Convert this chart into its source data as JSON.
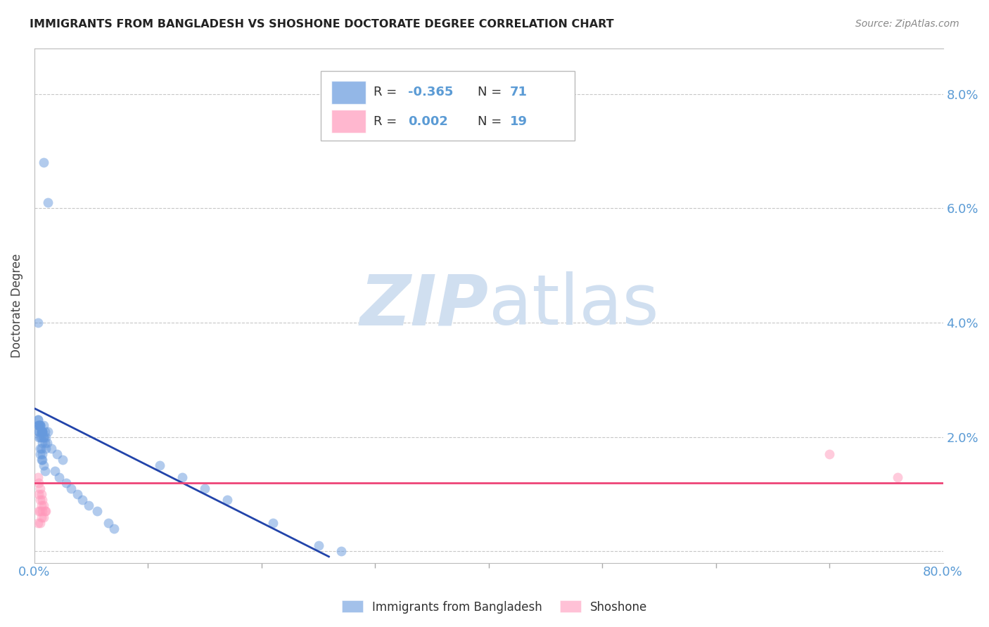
{
  "title": "IMMIGRANTS FROM BANGLADESH VS SHOSHONE DOCTORATE DEGREE CORRELATION CHART",
  "source": "Source: ZipAtlas.com",
  "axis_color": "#5b9bd5",
  "ylabel": "Doctorate Degree",
  "xlim": [
    0,
    0.8
  ],
  "ylim": [
    -0.002,
    0.088
  ],
  "yticks": [
    0.0,
    0.02,
    0.04,
    0.06,
    0.08
  ],
  "ytick_labels": [
    "",
    "2.0%",
    "4.0%",
    "6.0%",
    "8.0%"
  ],
  "xtick_labels": [
    "0.0%",
    "80.0%"
  ],
  "xtick_positions": [
    0.0,
    0.8
  ],
  "xtick_minor": [
    0.1,
    0.2,
    0.3,
    0.4,
    0.5,
    0.6,
    0.7
  ],
  "grid_color": "#c8c8c8",
  "background_color": "#ffffff",
  "blue_scatter_x": [
    0.003,
    0.008,
    0.012,
    0.003,
    0.004,
    0.005,
    0.006,
    0.007,
    0.008,
    0.009,
    0.01,
    0.011,
    0.012,
    0.003,
    0.004,
    0.005,
    0.006,
    0.007,
    0.008,
    0.009,
    0.01,
    0.003,
    0.004,
    0.005,
    0.006,
    0.007,
    0.008,
    0.004,
    0.005,
    0.006,
    0.007,
    0.004,
    0.005,
    0.006,
    0.007,
    0.005,
    0.006,
    0.007,
    0.008,
    0.009,
    0.015,
    0.02,
    0.025,
    0.018,
    0.022,
    0.028,
    0.032,
    0.038,
    0.042,
    0.048,
    0.055,
    0.065,
    0.07,
    0.11,
    0.13,
    0.15,
    0.17,
    0.21,
    0.25,
    0.27
  ],
  "blue_scatter_y": [
    0.04,
    0.068,
    0.061,
    0.023,
    0.022,
    0.022,
    0.021,
    0.021,
    0.022,
    0.021,
    0.02,
    0.019,
    0.021,
    0.022,
    0.021,
    0.022,
    0.021,
    0.021,
    0.02,
    0.019,
    0.018,
    0.023,
    0.022,
    0.022,
    0.021,
    0.021,
    0.02,
    0.021,
    0.02,
    0.02,
    0.019,
    0.02,
    0.018,
    0.018,
    0.017,
    0.017,
    0.016,
    0.016,
    0.015,
    0.014,
    0.018,
    0.017,
    0.016,
    0.014,
    0.013,
    0.012,
    0.011,
    0.01,
    0.009,
    0.008,
    0.007,
    0.005,
    0.004,
    0.015,
    0.013,
    0.011,
    0.009,
    0.005,
    0.001,
    0.0
  ],
  "pink_scatter_x": [
    0.003,
    0.004,
    0.005,
    0.006,
    0.007,
    0.008,
    0.009,
    0.01,
    0.004,
    0.005,
    0.006,
    0.007,
    0.008,
    0.004,
    0.005,
    0.006,
    0.003,
    0.005,
    0.7,
    0.76
  ],
  "pink_scatter_y": [
    0.013,
    0.012,
    0.011,
    0.01,
    0.009,
    0.008,
    0.007,
    0.007,
    0.01,
    0.009,
    0.008,
    0.007,
    0.006,
    0.007,
    0.007,
    0.006,
    0.005,
    0.005,
    0.017,
    0.013
  ],
  "blue_line_x": [
    0.0,
    0.26
  ],
  "blue_line_y": [
    0.025,
    -0.001
  ],
  "pink_line_y": 0.012,
  "blue_color": "#6699dd",
  "blue_line_color": "#2244aa",
  "pink_color": "#ff99bb",
  "pink_line_color": "#ee4477",
  "watermark_zip": "ZIP",
  "watermark_atlas": "atlas",
  "watermark_color": "#d0dff0",
  "marker_size": 100,
  "marker_alpha": 0.5
}
